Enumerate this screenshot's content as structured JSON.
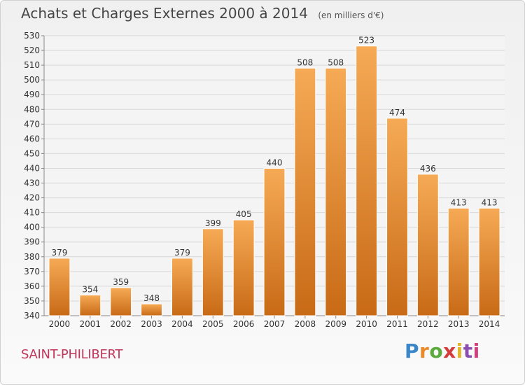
{
  "header": {
    "title": "Achats et Charges Externes 2000 à 2014",
    "unit": "(en milliers d'€)"
  },
  "footer": {
    "commune": "SAINT-PHILIBERT",
    "logo": "Proxiti",
    "logo_colors": [
      "#3a86c8",
      "#e8892a",
      "#5aab3c",
      "#d43c3c",
      "#e3b52a",
      "#8a4fb0",
      "#d0407a"
    ]
  },
  "colors": {
    "bar_top": "#f6aa55",
    "bar_bottom": "#c86a16",
    "grid": "#d8d8d8"
  },
  "chart_data": {
    "type": "bar",
    "title": "Achats et Charges Externes 2000 à 2014",
    "subtitle": "(en milliers d'€)",
    "categories": [
      "2000",
      "2001",
      "2002",
      "2003",
      "2004",
      "2005",
      "2006",
      "2007",
      "2008",
      "2009",
      "2010",
      "2011",
      "2012",
      "2013",
      "2014"
    ],
    "values": [
      379,
      354,
      359,
      348,
      379,
      399,
      405,
      440,
      508,
      508,
      523,
      474,
      436,
      413,
      413
    ],
    "ylim": [
      340,
      530
    ],
    "ytick_step": 10,
    "grid": true,
    "legend": "none"
  }
}
